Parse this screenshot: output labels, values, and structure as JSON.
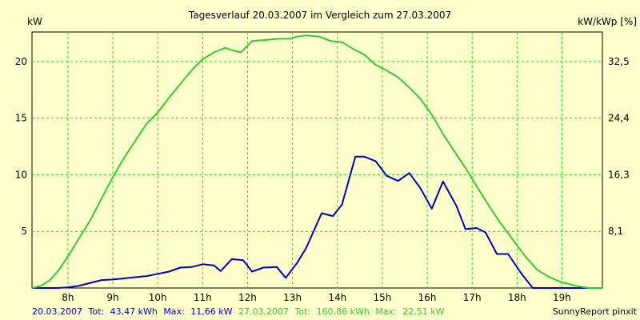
{
  "chart_data": {
    "type": "line",
    "title": "Tagesverlauf 20.03.2007 im Vergleich zum 27.03.2007",
    "ylabel_left": "kW",
    "ylabel_right": "kW/kWp [%]",
    "x_ticks": [
      "8h",
      "9h",
      "10h",
      "11h",
      "12h",
      "13h",
      "14h",
      "15h",
      "16h",
      "17h",
      "18h",
      "19h"
    ],
    "xlim": [
      7.2,
      19.9
    ],
    "ylim": [
      0,
      22.6
    ],
    "y_ticks_left": [
      "5",
      "10",
      "15",
      "20"
    ],
    "y_ticks_right": [
      "8,1",
      "16,3",
      "24,4",
      "32,5"
    ],
    "grid": true,
    "series": [
      {
        "name": "20.03.2007",
        "color": "#0000cc",
        "x": [
          7.2,
          7.5,
          7.75,
          8.0,
          8.25,
          8.5,
          8.75,
          9.0,
          9.25,
          9.5,
          9.75,
          10.0,
          10.25,
          10.5,
          10.75,
          11.0,
          11.25,
          11.4,
          11.65,
          11.9,
          12.1,
          12.35,
          12.65,
          12.85,
          13.1,
          13.3,
          13.65,
          13.9,
          14.1,
          14.4,
          14.6,
          14.85,
          15.1,
          15.35,
          15.6,
          15.85,
          16.1,
          16.35,
          16.65,
          16.85,
          17.1,
          17.3,
          17.55,
          17.8,
          18.1,
          18.35,
          18.7,
          19.0,
          19.5,
          19.9
        ],
        "values": [
          0,
          0,
          0,
          0.05,
          0.2,
          0.45,
          0.7,
          0.75,
          0.85,
          0.95,
          1.05,
          1.25,
          1.45,
          1.8,
          1.85,
          2.1,
          2.0,
          1.5,
          2.55,
          2.45,
          1.45,
          1.8,
          1.85,
          0.9,
          2.2,
          3.5,
          6.6,
          6.35,
          7.35,
          11.6,
          11.6,
          11.2,
          9.9,
          9.45,
          10.15,
          8.8,
          7.0,
          9.4,
          7.25,
          5.2,
          5.3,
          4.9,
          3.0,
          3.0,
          1.25,
          0,
          0,
          0,
          0,
          0
        ]
      },
      {
        "name": "27.03.2007",
        "color": "#33cc33",
        "x": [
          7.2,
          7.4,
          7.6,
          7.8,
          8.0,
          8.25,
          8.5,
          8.75,
          9.0,
          9.25,
          9.5,
          9.75,
          10.0,
          10.25,
          10.5,
          10.75,
          11.0,
          11.25,
          11.5,
          11.65,
          11.85,
          12.1,
          12.4,
          12.7,
          12.95,
          13.1,
          13.3,
          13.6,
          13.85,
          14.1,
          14.4,
          14.6,
          14.85,
          15.1,
          15.35,
          15.6,
          15.85,
          16.1,
          16.35,
          16.6,
          16.85,
          17.1,
          17.35,
          17.6,
          17.9,
          18.2,
          18.45,
          18.7,
          19.0,
          19.3,
          19.6,
          19.9
        ],
        "values": [
          0,
          0.2,
          0.7,
          1.6,
          2.8,
          4.4,
          6.0,
          7.9,
          9.8,
          11.5,
          13.0,
          14.5,
          15.5,
          16.8,
          18.0,
          19.2,
          20.2,
          20.8,
          21.2,
          21.0,
          20.8,
          21.8,
          21.9,
          22.0,
          22.0,
          22.2,
          22.3,
          22.2,
          21.8,
          21.7,
          21.0,
          20.6,
          19.7,
          19.2,
          18.6,
          17.7,
          16.7,
          15.3,
          13.6,
          12.1,
          10.6,
          9.0,
          7.4,
          5.9,
          4.3,
          2.7,
          1.6,
          1.0,
          0.5,
          0.2,
          0,
          0
        ]
      }
    ],
    "footer": {
      "s1_date": "20.03.2007",
      "s1_tot_label": "Tot:",
      "s1_tot_value": "43,47 kWh",
      "s1_max_label": "Max:",
      "s1_max_value": "11,66 kW",
      "s2_date": "27.03.2007",
      "s2_tot_label": "Tot:",
      "s2_tot_value": "160,86 kWh",
      "s2_max_label": "Max:",
      "s2_max_value": "22,51 kW",
      "credit": "SunnyReport pinxit"
    }
  }
}
